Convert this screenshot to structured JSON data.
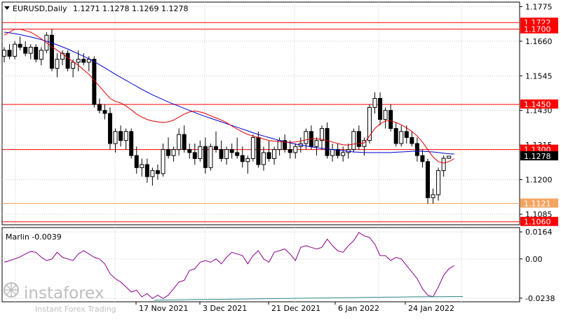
{
  "header": {
    "symbol_timeframe": "EURUSD,Daily",
    "ohlc": "1.1271 1.1278 1.1269 1.1278"
  },
  "indicator": {
    "label": "Marlin -0.0039",
    "scale_labels": [
      "0.0164",
      "0.00",
      "-0.0238"
    ]
  },
  "price_scale_labels": [
    "1.1775",
    "1.1660",
    "1.1545",
    "1.1430",
    "1.1315",
    "1.1200",
    "1.1085"
  ],
  "level_badges": [
    {
      "value": "1.1722",
      "price": 1.1722,
      "color": "#ff0000"
    },
    {
      "value": "1.1700",
      "price": 1.17,
      "color": "#ff0000"
    },
    {
      "value": "1.1450",
      "price": 1.145,
      "color": "#ff0000"
    },
    {
      "value": "1.1300",
      "price": 1.13,
      "color": "#ff0000"
    },
    {
      "value": "1.1278",
      "price": 1.1278,
      "color": "#000000"
    },
    {
      "value": "1.1121",
      "price": 1.1121,
      "color": "#f4a460"
    },
    {
      "value": "1.1060",
      "price": 1.106,
      "color": "#ff0000"
    }
  ],
  "date_labels": [
    "17 Nov 2021",
    "3 Dec 2021",
    "21 Dec 2021",
    "6 Jan 2022",
    "24 Jan 2022"
  ],
  "watermark": {
    "brand": "instaforex",
    "tagline": "Instant Forex Trading"
  },
  "colors": {
    "grid": "#c8c8c8",
    "chart_bg": "#ffffff",
    "candle": "#000000",
    "ma_fast": "#e00000",
    "ma_slow": "#0000cc",
    "oscillator": "#8b008b",
    "signal": "#2e8b8b",
    "level_line": "#ff0000",
    "support_line": "#f4a460"
  },
  "chart_data": {
    "type": "candlestick",
    "price_range": [
      1.105,
      1.179
    ],
    "osc_range": [
      -0.026,
      0.019
    ],
    "ohlc": [
      [
        1.161,
        1.164,
        1.159,
        1.163
      ],
      [
        1.163,
        1.165,
        1.16,
        1.161
      ],
      [
        1.161,
        1.166,
        1.16,
        1.165
      ],
      [
        1.165,
        1.1675,
        1.163,
        1.164
      ],
      [
        1.164,
        1.166,
        1.161,
        1.162
      ],
      [
        1.162,
        1.165,
        1.16,
        1.164
      ],
      [
        1.164,
        1.165,
        1.159,
        1.16
      ],
      [
        1.16,
        1.164,
        1.158,
        1.163
      ],
      [
        1.163,
        1.169,
        1.162,
        1.168
      ],
      [
        1.168,
        1.17,
        1.156,
        1.157
      ],
      [
        1.157,
        1.162,
        1.154,
        1.16
      ],
      [
        1.16,
        1.163,
        1.158,
        1.162
      ],
      [
        1.162,
        1.163,
        1.156,
        1.157
      ],
      [
        1.157,
        1.16,
        1.154,
        1.159
      ],
      [
        1.159,
        1.163,
        1.156,
        1.16
      ],
      [
        1.16,
        1.162,
        1.158,
        1.159
      ],
      [
        1.159,
        1.161,
        1.156,
        1.16
      ],
      [
        1.16,
        1.161,
        1.144,
        1.145
      ],
      [
        1.145,
        1.147,
        1.142,
        1.143
      ],
      [
        1.143,
        1.145,
        1.14,
        1.142
      ],
      [
        1.142,
        1.144,
        1.13,
        1.132
      ],
      [
        1.132,
        1.137,
        1.129,
        1.136
      ],
      [
        1.136,
        1.138,
        1.131,
        1.133
      ],
      [
        1.133,
        1.137,
        1.13,
        1.136
      ],
      [
        1.136,
        1.137,
        1.127,
        1.128
      ],
      [
        1.128,
        1.131,
        1.122,
        1.124
      ],
      [
        1.124,
        1.127,
        1.121,
        1.125
      ],
      [
        1.125,
        1.127,
        1.119,
        1.121
      ],
      [
        1.121,
        1.124,
        1.118,
        1.123
      ],
      [
        1.123,
        1.125,
        1.12,
        1.122
      ],
      [
        1.122,
        1.132,
        1.121,
        1.13
      ],
      [
        1.13,
        1.134,
        1.127,
        1.128
      ],
      [
        1.128,
        1.131,
        1.126,
        1.13
      ],
      [
        1.13,
        1.137,
        1.128,
        1.135
      ],
      [
        1.135,
        1.138,
        1.129,
        1.13
      ],
      [
        1.13,
        1.132,
        1.127,
        1.129
      ],
      [
        1.129,
        1.132,
        1.125,
        1.127
      ],
      [
        1.127,
        1.133,
        1.126,
        1.131
      ],
      [
        1.131,
        1.134,
        1.122,
        1.124
      ],
      [
        1.124,
        1.132,
        1.123,
        1.131
      ],
      [
        1.131,
        1.136,
        1.129,
        1.13
      ],
      [
        1.13,
        1.133,
        1.126,
        1.127
      ],
      [
        1.127,
        1.131,
        1.125,
        1.13
      ],
      [
        1.13,
        1.132,
        1.127,
        1.129
      ],
      [
        1.129,
        1.134,
        1.127,
        1.128
      ],
      [
        1.128,
        1.131,
        1.124,
        1.126
      ],
      [
        1.126,
        1.128,
        1.122,
        1.127
      ],
      [
        1.127,
        1.135,
        1.126,
        1.134
      ],
      [
        1.134,
        1.136,
        1.124,
        1.125
      ],
      [
        1.125,
        1.131,
        1.123,
        1.129
      ],
      [
        1.129,
        1.133,
        1.126,
        1.127
      ],
      [
        1.127,
        1.131,
        1.125,
        1.13
      ],
      [
        1.13,
        1.134,
        1.128,
        1.133
      ],
      [
        1.133,
        1.135,
        1.129,
        1.13
      ],
      [
        1.13,
        1.133,
        1.127,
        1.129
      ],
      [
        1.129,
        1.132,
        1.127,
        1.131
      ],
      [
        1.131,
        1.134,
        1.129,
        1.132
      ],
      [
        1.132,
        1.137,
        1.13,
        1.136
      ],
      [
        1.136,
        1.138,
        1.13,
        1.131
      ],
      [
        1.131,
        1.134,
        1.128,
        1.133
      ],
      [
        1.133,
        1.138,
        1.13,
        1.137
      ],
      [
        1.137,
        1.139,
        1.127,
        1.128
      ],
      [
        1.128,
        1.132,
        1.126,
        1.13
      ],
      [
        1.13,
        1.132,
        1.127,
        1.128
      ],
      [
        1.128,
        1.131,
        1.126,
        1.129
      ],
      [
        1.129,
        1.132,
        1.127,
        1.13
      ],
      [
        1.13,
        1.137,
        1.129,
        1.136
      ],
      [
        1.136,
        1.138,
        1.13,
        1.131
      ],
      [
        1.131,
        1.134,
        1.128,
        1.133
      ],
      [
        1.133,
        1.145,
        1.132,
        1.144
      ],
      [
        1.144,
        1.149,
        1.142,
        1.147
      ],
      [
        1.147,
        1.149,
        1.138,
        1.14
      ],
      [
        1.14,
        1.144,
        1.137,
        1.143
      ],
      [
        1.143,
        1.145,
        1.136,
        1.137
      ],
      [
        1.137,
        1.139,
        1.131,
        1.132
      ],
      [
        1.132,
        1.138,
        1.131,
        1.136
      ],
      [
        1.136,
        1.138,
        1.132,
        1.134
      ],
      [
        1.134,
        1.136,
        1.131,
        1.132
      ],
      [
        1.132,
        1.134,
        1.126,
        1.128
      ],
      [
        1.128,
        1.13,
        1.124,
        1.126
      ],
      [
        1.126,
        1.127,
        1.112,
        1.114
      ],
      [
        1.114,
        1.117,
        1.112,
        1.115
      ],
      [
        1.115,
        1.124,
        1.113,
        1.123
      ],
      [
        1.123,
        1.128,
        1.121,
        1.1271
      ],
      [
        1.1271,
        1.1278,
        1.1269,
        1.1278
      ]
    ],
    "ma_fast": [
      1.168,
      1.169,
      1.17,
      1.17,
      1.1695,
      1.169,
      1.168,
      1.1668,
      1.1655,
      1.1642,
      1.163,
      1.1618,
      1.1605,
      1.1592,
      1.158,
      1.1565,
      1.155,
      1.153,
      1.151,
      1.149,
      1.147,
      1.146,
      1.1455,
      1.1445,
      1.1432,
      1.1418,
      1.1408,
      1.14,
      1.1395,
      1.1392,
      1.139,
      1.1392,
      1.1398,
      1.1408,
      1.1418,
      1.1425,
      1.1428,
      1.1425,
      1.142,
      1.1412,
      1.1405,
      1.1398,
      1.139,
      1.1378,
      1.1368,
      1.1358,
      1.135,
      1.1345,
      1.134,
      1.1335,
      1.133,
      1.1328,
      1.1326,
      1.1325,
      1.1324,
      1.1325,
      1.1328,
      1.1332,
      1.1335,
      1.1336,
      1.1334,
      1.133,
      1.1325,
      1.132,
      1.1316,
      1.1315,
      1.1318,
      1.132,
      1.1322,
      1.1345,
      1.137,
      1.1385,
      1.1395,
      1.1395,
      1.139,
      1.1382,
      1.1372,
      1.136,
      1.1345,
      1.1325,
      1.13,
      1.1275,
      1.126,
      1.1255,
      1.126,
      1.127
    ],
    "ma_slow": [
      1.169,
      1.1688,
      1.1685,
      1.1682,
      1.1678,
      1.1674,
      1.167,
      1.1665,
      1.166,
      1.1654,
      1.1648,
      1.1641,
      1.1634,
      1.1626,
      1.1618,
      1.161,
      1.1602,
      1.1592,
      1.1582,
      1.1572,
      1.1561,
      1.155,
      1.154,
      1.153,
      1.152,
      1.151,
      1.15,
      1.1491,
      1.1482,
      1.1474,
      1.1466,
      1.1458,
      1.1451,
      1.1444,
      1.1437,
      1.143,
      1.1423,
      1.1416,
      1.141,
      1.1404,
      1.1398,
      1.1392,
      1.1386,
      1.138,
      1.1374,
      1.1368,
      1.1362,
      1.1356,
      1.135,
      1.1345,
      1.134,
      1.1335,
      1.133,
      1.1326,
      1.1322,
      1.1318,
      1.1315,
      1.1312,
      1.1309,
      1.1306,
      1.1304,
      1.1302,
      1.13,
      1.1298,
      1.1296,
      1.1294,
      1.1292,
      1.1291,
      1.129,
      1.129,
      1.129,
      1.129,
      1.129,
      1.129,
      1.1291,
      1.1292,
      1.1293,
      1.1294,
      1.1295,
      1.1294,
      1.1293,
      1.1292,
      1.129,
      1.1288,
      1.1286,
      1.1285
    ],
    "oscillator": [
      -0.002,
      -0.001,
      0.0,
      0.0012,
      0.003,
      0.0045,
      0.004,
      0.001,
      -0.001,
      0.0,
      0.004,
      0.001,
      0.0,
      -0.001,
      0.003,
      0.005,
      0.003,
      0.001,
      0.0,
      -0.003,
      -0.009,
      -0.012,
      -0.014,
      -0.017,
      -0.02,
      -0.019,
      -0.023,
      -0.021,
      -0.024,
      -0.022,
      -0.024,
      -0.022,
      -0.018,
      -0.014,
      -0.013,
      -0.007,
      -0.006,
      -0.002,
      -0.001,
      -0.002,
      0.0,
      -0.003,
      0.001,
      0.004,
      0.003,
      0.002,
      -0.003,
      0.002,
      0.005,
      0.0,
      -0.002,
      0.004,
      0.005,
      0.006,
      0.003,
      -0.001,
      0.007,
      0.008,
      0.007,
      0.006,
      0.007,
      0.012,
      0.008,
      0.005,
      0.004,
      0.008,
      0.011,
      0.016,
      0.014,
      0.013,
      0.009,
      0.002,
      0.002,
      -0.001,
      0.001,
      0.0,
      -0.004,
      -0.008,
      -0.012,
      -0.018,
      -0.022,
      -0.023,
      -0.017,
      -0.01,
      -0.006,
      -0.004
    ],
    "signal": [
      -0.025,
      -0.0249,
      -0.0248,
      -0.0247,
      -0.0246,
      -0.0245,
      -0.0244,
      -0.0243,
      -0.0242,
      -0.0241,
      -0.024,
      -0.0239,
      -0.0238,
      -0.0237,
      -0.0236,
      -0.0235,
      -0.0234,
      -0.0233,
      -0.0232,
      -0.0231,
      -0.023,
      -0.0229,
      -0.0229,
      -0.0228,
      -0.0228
    ]
  }
}
